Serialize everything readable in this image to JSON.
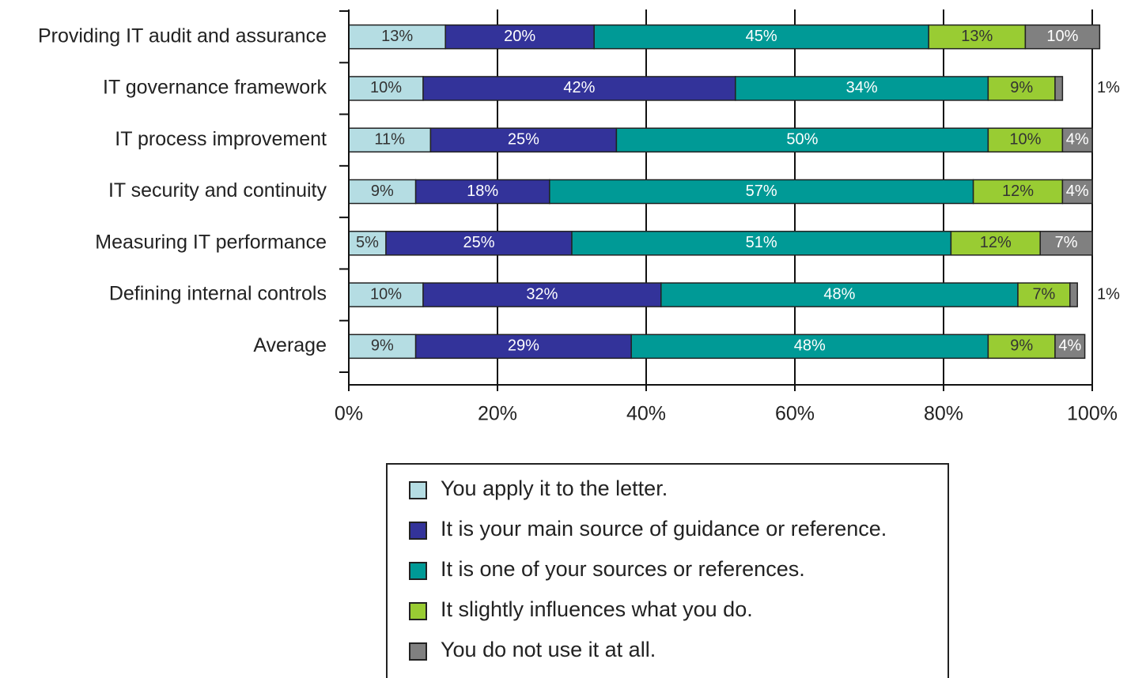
{
  "chart_data": {
    "type": "stacked_barh",
    "categories": [
      "Providing IT audit and assurance",
      "IT governance framework",
      "IT process improvement",
      "IT security and continuity",
      "Measuring IT performance",
      "Defining internal controls",
      "Average"
    ],
    "series": [
      {
        "name": "You apply it to the letter.",
        "color": "#b5dde3",
        "values": [
          13,
          10,
          11,
          9,
          5,
          10,
          9
        ],
        "value_labels": [
          "13%",
          "10%",
          "11%",
          "9%",
          "5%",
          "10%",
          "9%"
        ]
      },
      {
        "name": "It is your main source of guidance or reference.",
        "color": "#33339a",
        "values": [
          20,
          42,
          25,
          18,
          25,
          32,
          29
        ],
        "value_labels": [
          "20%",
          "42%",
          "25%",
          "18%",
          "25%",
          "32%",
          "29%"
        ]
      },
      {
        "name": "It is one of your sources or references.",
        "color": "#009a96",
        "values": [
          45,
          34,
          50,
          57,
          51,
          48,
          48
        ],
        "value_labels": [
          "45%",
          "34%",
          "50%",
          "57%",
          "51%",
          "48%",
          "48%"
        ]
      },
      {
        "name": "It slightly influences what you do.",
        "color": "#99cc33",
        "values": [
          13,
          9,
          10,
          12,
          12,
          7,
          9
        ],
        "value_labels": [
          "13%",
          "9%",
          "10%",
          "12%",
          "12%",
          "7%",
          "9%"
        ]
      },
      {
        "name": "You do not use it at all.",
        "color": "#808080",
        "values": [
          10,
          1,
          4,
          4,
          7,
          1,
          4
        ],
        "value_labels": [
          "10%",
          "1%",
          "4%",
          "4%",
          "7%",
          "1%",
          "4%"
        ]
      }
    ],
    "xlim": [
      0,
      100
    ],
    "xticks": [
      {
        "value": 0,
        "label": "0%"
      },
      {
        "value": 20,
        "label": "20%"
      },
      {
        "value": 40,
        "label": "40%"
      },
      {
        "value": 60,
        "label": "60%"
      },
      {
        "value": 80,
        "label": "80%"
      },
      {
        "value": 100,
        "label": "100%"
      }
    ],
    "grid": true
  }
}
